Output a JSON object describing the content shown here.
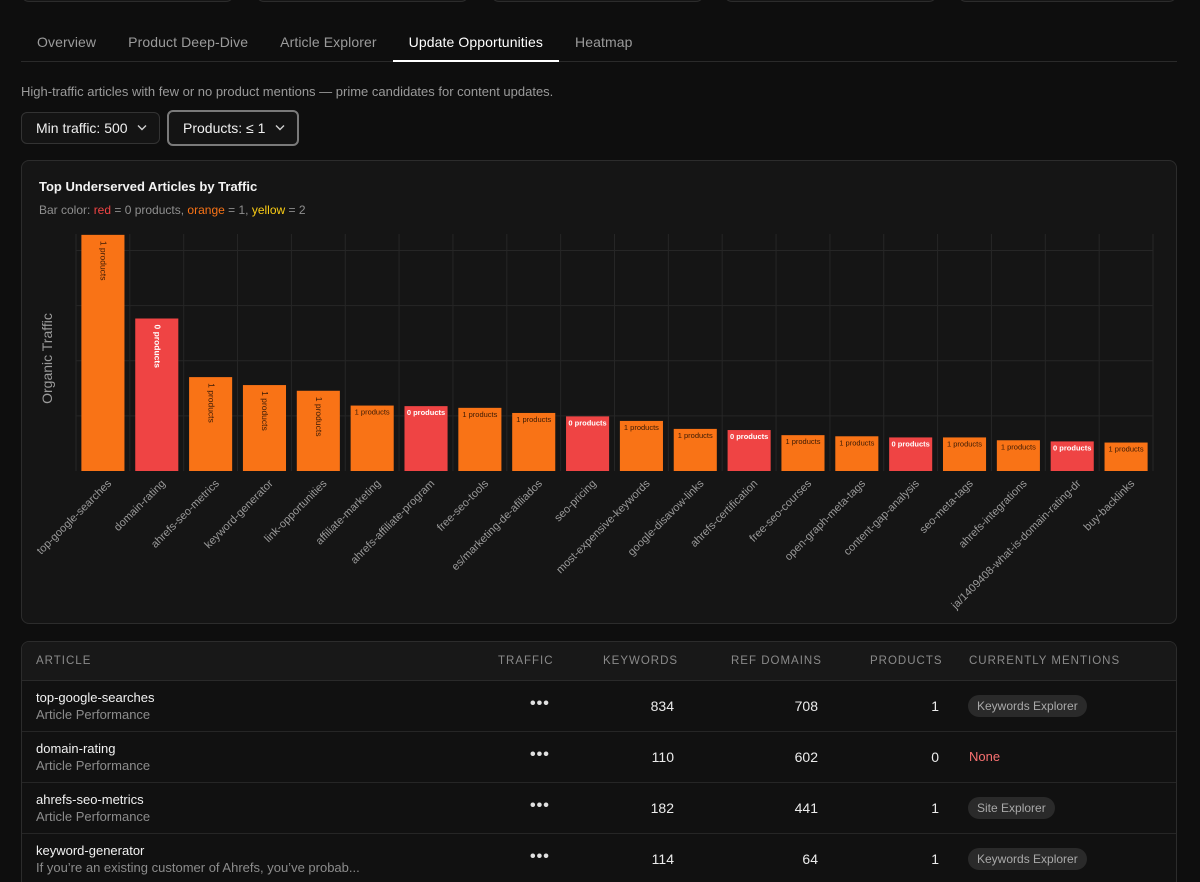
{
  "tabs": [
    {
      "label": "Overview",
      "active": false
    },
    {
      "label": "Product Deep-Dive",
      "active": false
    },
    {
      "label": "Article Explorer",
      "active": false
    },
    {
      "label": "Update Opportunities",
      "active": true
    },
    {
      "label": "Heatmap",
      "active": false
    }
  ],
  "subtitle": "High-traffic articles with few or no product mentions — prime candidates for content updates.",
  "filters": {
    "min_traffic": "Min traffic: 500",
    "products": "Products: ≤ 1"
  },
  "chart": {
    "title": "Top Underserved Articles by Traffic",
    "legend": {
      "prefix": "Bar color: ",
      "red": "red",
      "red_text": " = 0 products, ",
      "orange": "orange",
      "orange_text": " = 1, ",
      "yellow": "yellow",
      "yellow_text": " = 2"
    },
    "colors": {
      "red": "#ef4444",
      "orange": "#f97316",
      "yellow": "#facc15"
    }
  },
  "chart_data": {
    "type": "bar",
    "title": "Top Underserved Articles by Traffic",
    "ylabel": "Organic Traffic",
    "xlabel": "",
    "grid": true,
    "categories": [
      "top-google-searches",
      "domain-rating",
      "ahrefs-seo-metrics",
      "keyword-generator",
      "link-opportunities",
      "affiliate-marketing",
      "ahrefs-affiliate-program",
      "free-seo-tools",
      "es/marketing-de-afiliados",
      "seo-pricing",
      "most-expensive-keywords",
      "google-disavow-links",
      "ahrefs-certification",
      "free-seo-courses",
      "open-graph-meta-tags",
      "content-gap-analysis",
      "seo-meta-tags",
      "ahrefs-integrations",
      "ja/1409408-what-is-domain-rating-dr",
      "buy-backlinks"
    ],
    "values": [
      4150,
      2680,
      1650,
      1510,
      1410,
      1150,
      1140,
      1110,
      1020,
      960,
      880,
      740,
      720,
      630,
      610,
      590,
      590,
      540,
      520,
      500
    ],
    "products": [
      1,
      0,
      1,
      1,
      1,
      1,
      0,
      1,
      1,
      0,
      1,
      1,
      0,
      1,
      1,
      0,
      1,
      1,
      0,
      1
    ],
    "bar_labels": [
      "1 products",
      "0 products",
      "1 products",
      "1 products",
      "1 products",
      "1 products",
      "0 products",
      "1 products",
      "1 products",
      "0 products",
      "1 products",
      "1 products",
      "0 products",
      "1 products",
      "1 products",
      "0 products",
      "1 products",
      "1 products",
      "0 products",
      "1 products"
    ],
    "ylim": [
      0,
      4200
    ]
  },
  "table": {
    "headers": [
      "ARTICLE",
      "TRAFFIC",
      "KEYWORDS",
      "REF DOMAINS",
      "PRODUCTS",
      "CURRENTLY MENTIONS"
    ],
    "rows": [
      {
        "title": "top-google-searches",
        "subtitle": "Article Performance",
        "traffic": "•••",
        "keywords": "834",
        "ref_domains": "708",
        "products": "1",
        "mentions": "Keywords Explorer"
      },
      {
        "title": "domain-rating",
        "subtitle": "Article Performance",
        "traffic": "•••",
        "keywords": "110",
        "ref_domains": "602",
        "products": "0",
        "mentions": "None"
      },
      {
        "title": "ahrefs-seo-metrics",
        "subtitle": "Article Performance",
        "traffic": "•••",
        "keywords": "182",
        "ref_domains": "441",
        "products": "1",
        "mentions": "Site Explorer"
      },
      {
        "title": "keyword-generator",
        "subtitle": "If you’re an existing customer of Ahrefs, you’ve probab...",
        "traffic": "•••",
        "keywords": "114",
        "ref_domains": "64",
        "products": "1",
        "mentions": "Keywords Explorer"
      }
    ]
  }
}
